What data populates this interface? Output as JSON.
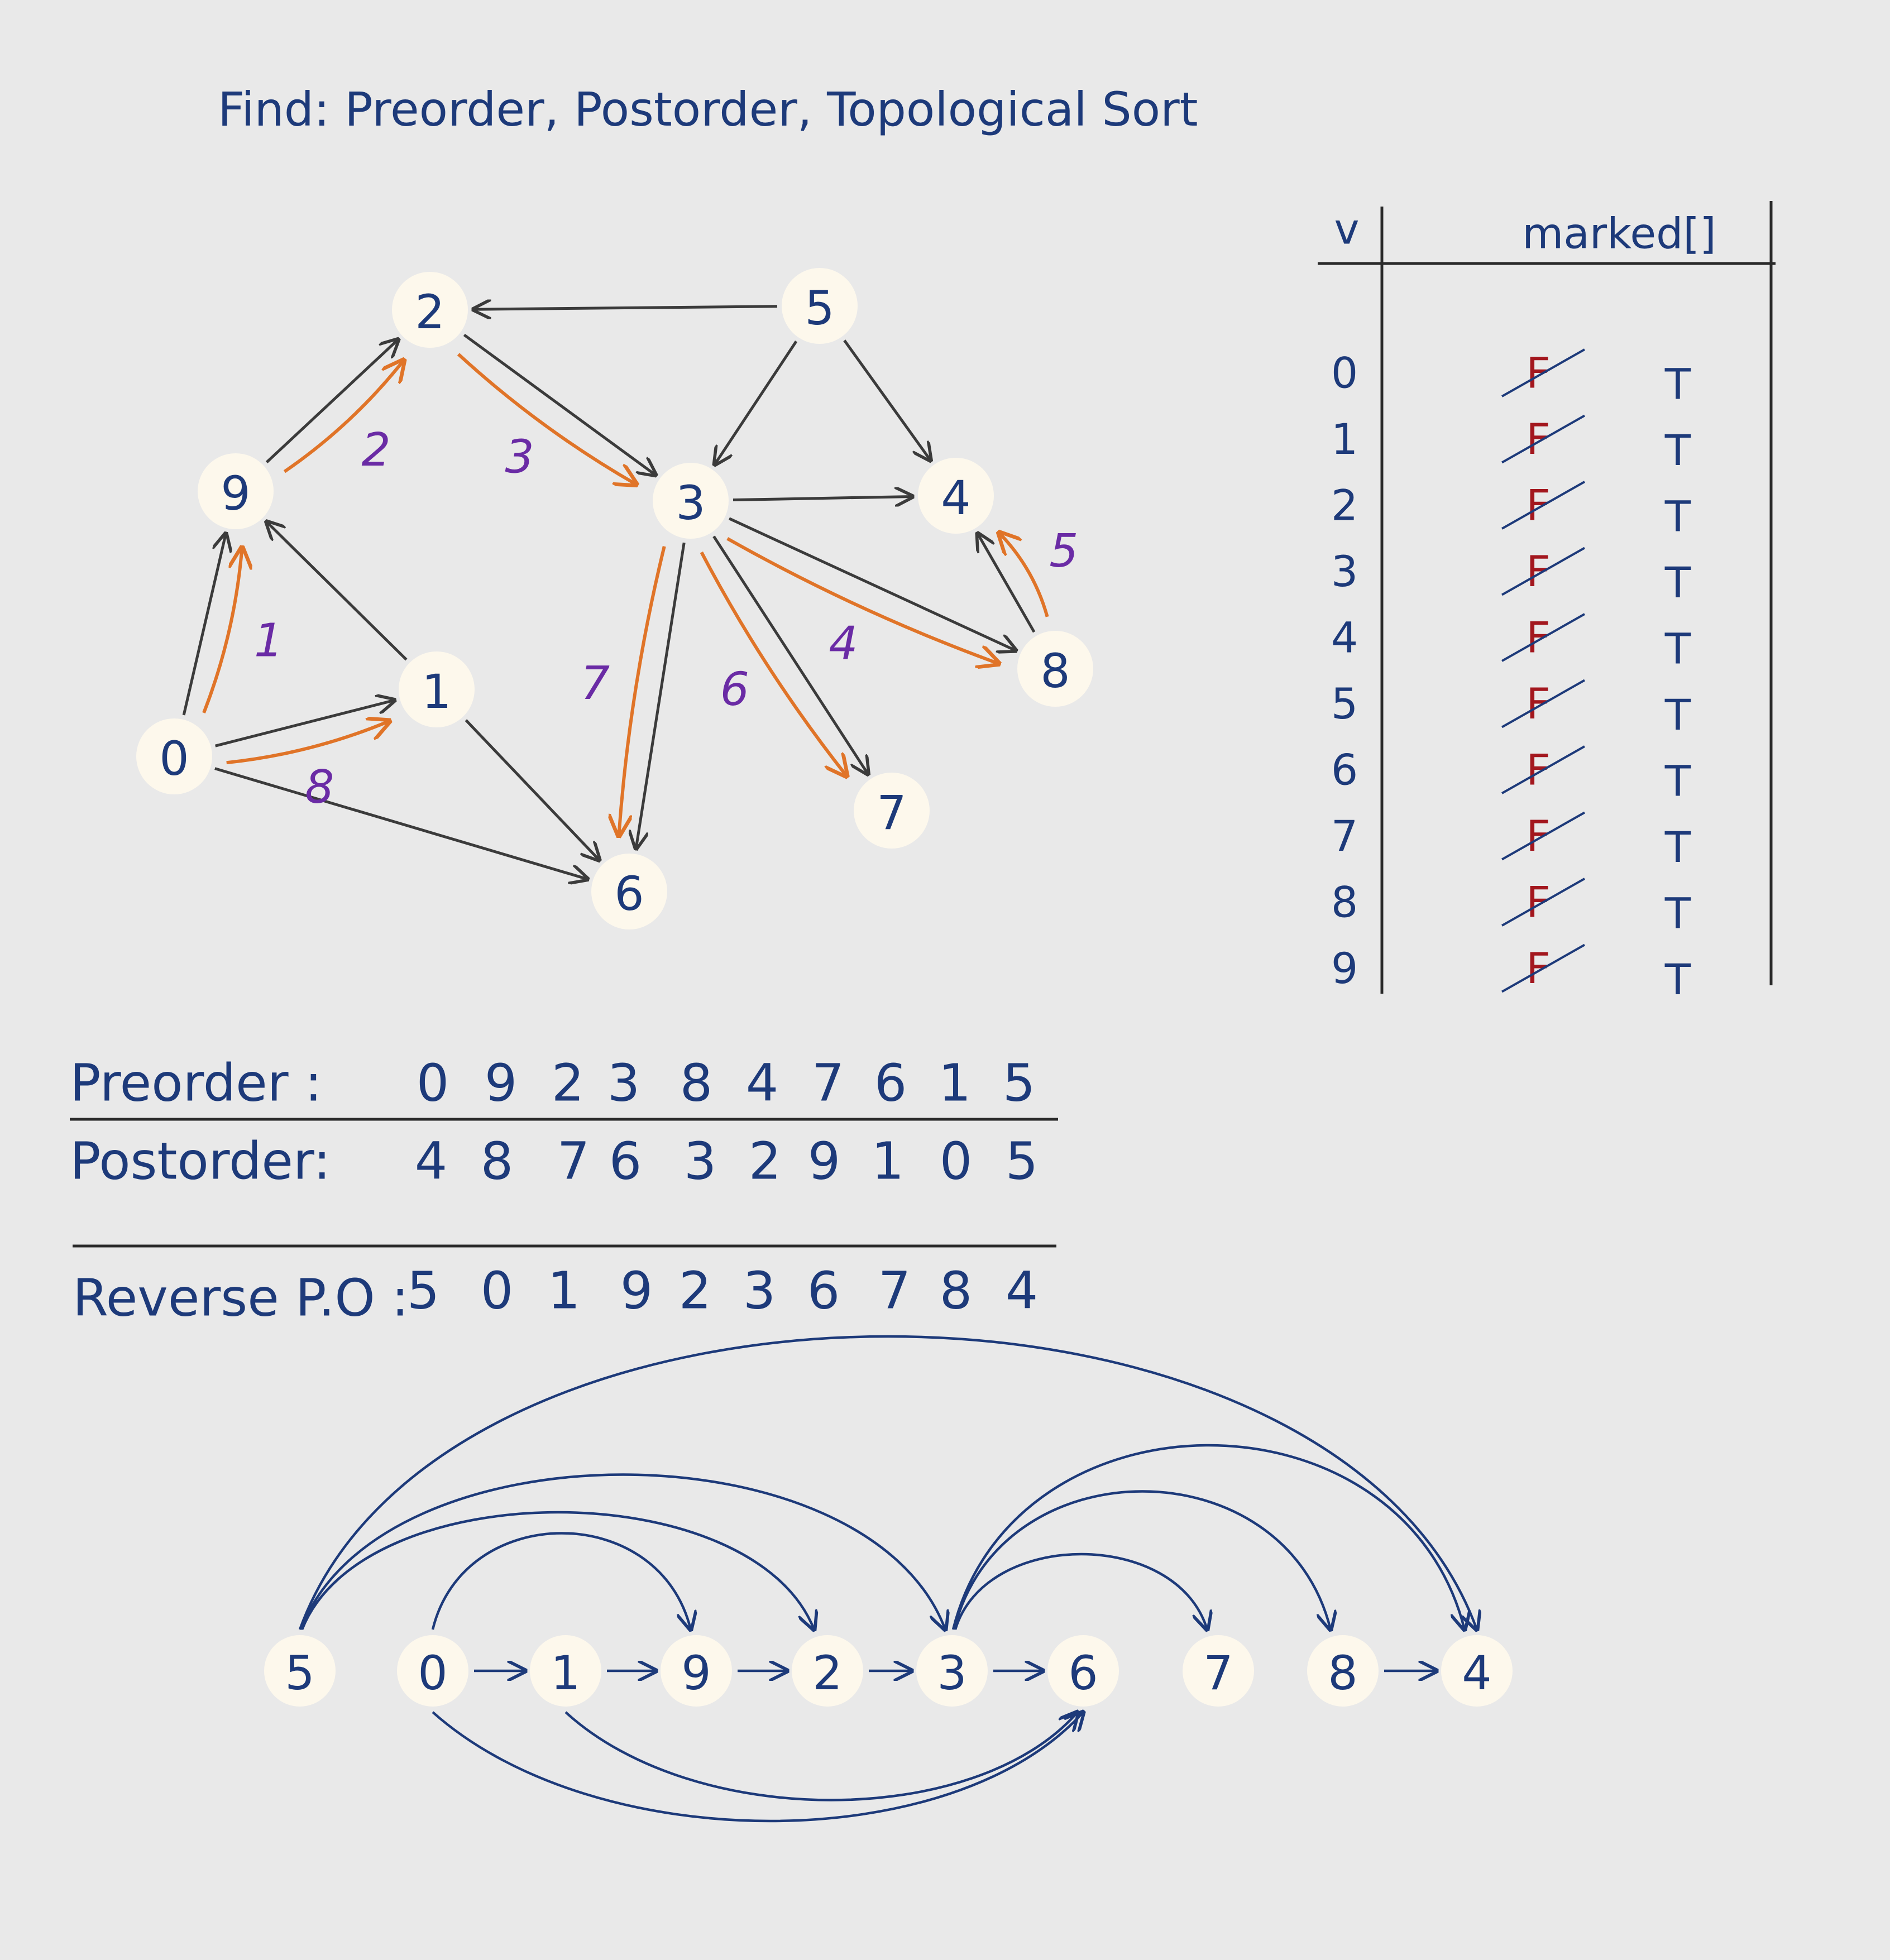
{
  "title": "Find: Preorder, Postorder, Topological Sort",
  "colors": {
    "ink": "#1d3a7a",
    "edge": "#3b3b3b",
    "traversal": "#e07428",
    "order_label": "#6a2ba5",
    "strike": "#a3171e",
    "node_fill": "#fdf8ec",
    "background": "#e9e9e9"
  },
  "graph": {
    "nodes": [
      "0",
      "1",
      "2",
      "3",
      "4",
      "5",
      "6",
      "7",
      "8",
      "9"
    ],
    "edges": [
      [
        "0",
        "9"
      ],
      [
        "0",
        "1"
      ],
      [
        "0",
        "6"
      ],
      [
        "9",
        "2"
      ],
      [
        "1",
        "9"
      ],
      [
        "1",
        "6"
      ],
      [
        "5",
        "2"
      ],
      [
        "2",
        "3"
      ],
      [
        "5",
        "3"
      ],
      [
        "5",
        "4"
      ],
      [
        "3",
        "4"
      ],
      [
        "3",
        "8"
      ],
      [
        "3",
        "7"
      ],
      [
        "3",
        "6"
      ],
      [
        "8",
        "4"
      ]
    ],
    "traversal_order": [
      {
        "step": "1",
        "from": "0",
        "to": "9"
      },
      {
        "step": "2",
        "from": "9",
        "to": "2"
      },
      {
        "step": "3",
        "from": "2",
        "to": "3"
      },
      {
        "step": "4",
        "from": "3",
        "to": "8"
      },
      {
        "step": "5",
        "from": "8",
        "to": "4"
      },
      {
        "step": "6",
        "from": "3",
        "to": "7"
      },
      {
        "step": "7",
        "from": "3",
        "to": "6"
      },
      {
        "step": "8",
        "from": "0",
        "to": "1"
      }
    ]
  },
  "marked_table": {
    "header_v": "v",
    "header_marked": "marked[]",
    "rows": [
      {
        "v": "0",
        "old": "F",
        "new": "T"
      },
      {
        "v": "1",
        "old": "F",
        "new": "T"
      },
      {
        "v": "2",
        "old": "F",
        "new": "T"
      },
      {
        "v": "3",
        "old": "F",
        "new": "T"
      },
      {
        "v": "4",
        "old": "F",
        "new": "T"
      },
      {
        "v": "5",
        "old": "F",
        "new": "T"
      },
      {
        "v": "6",
        "old": "F",
        "new": "T"
      },
      {
        "v": "7",
        "old": "F",
        "new": "T"
      },
      {
        "v": "8",
        "old": "F",
        "new": "T"
      },
      {
        "v": "9",
        "old": "F",
        "new": "T"
      }
    ]
  },
  "sequences": {
    "preorder": {
      "label": "Preorder :",
      "values": [
        "0",
        "9",
        "2",
        "3",
        "8",
        "4",
        "7",
        "6",
        "1",
        "5"
      ]
    },
    "postorder": {
      "label": "Postorder:",
      "values": [
        "4",
        "8",
        "7",
        "6",
        "3",
        "2",
        "9",
        "1",
        "0",
        "5"
      ]
    },
    "reverse_postorder": {
      "label": "Reverse P.O :",
      "values": [
        "5",
        "0",
        "1",
        "9",
        "2",
        "3",
        "6",
        "7",
        "8",
        "4"
      ]
    }
  },
  "topological_sort": {
    "order": [
      "5",
      "0",
      "1",
      "9",
      "2",
      "3",
      "6",
      "7",
      "8",
      "4"
    ]
  }
}
